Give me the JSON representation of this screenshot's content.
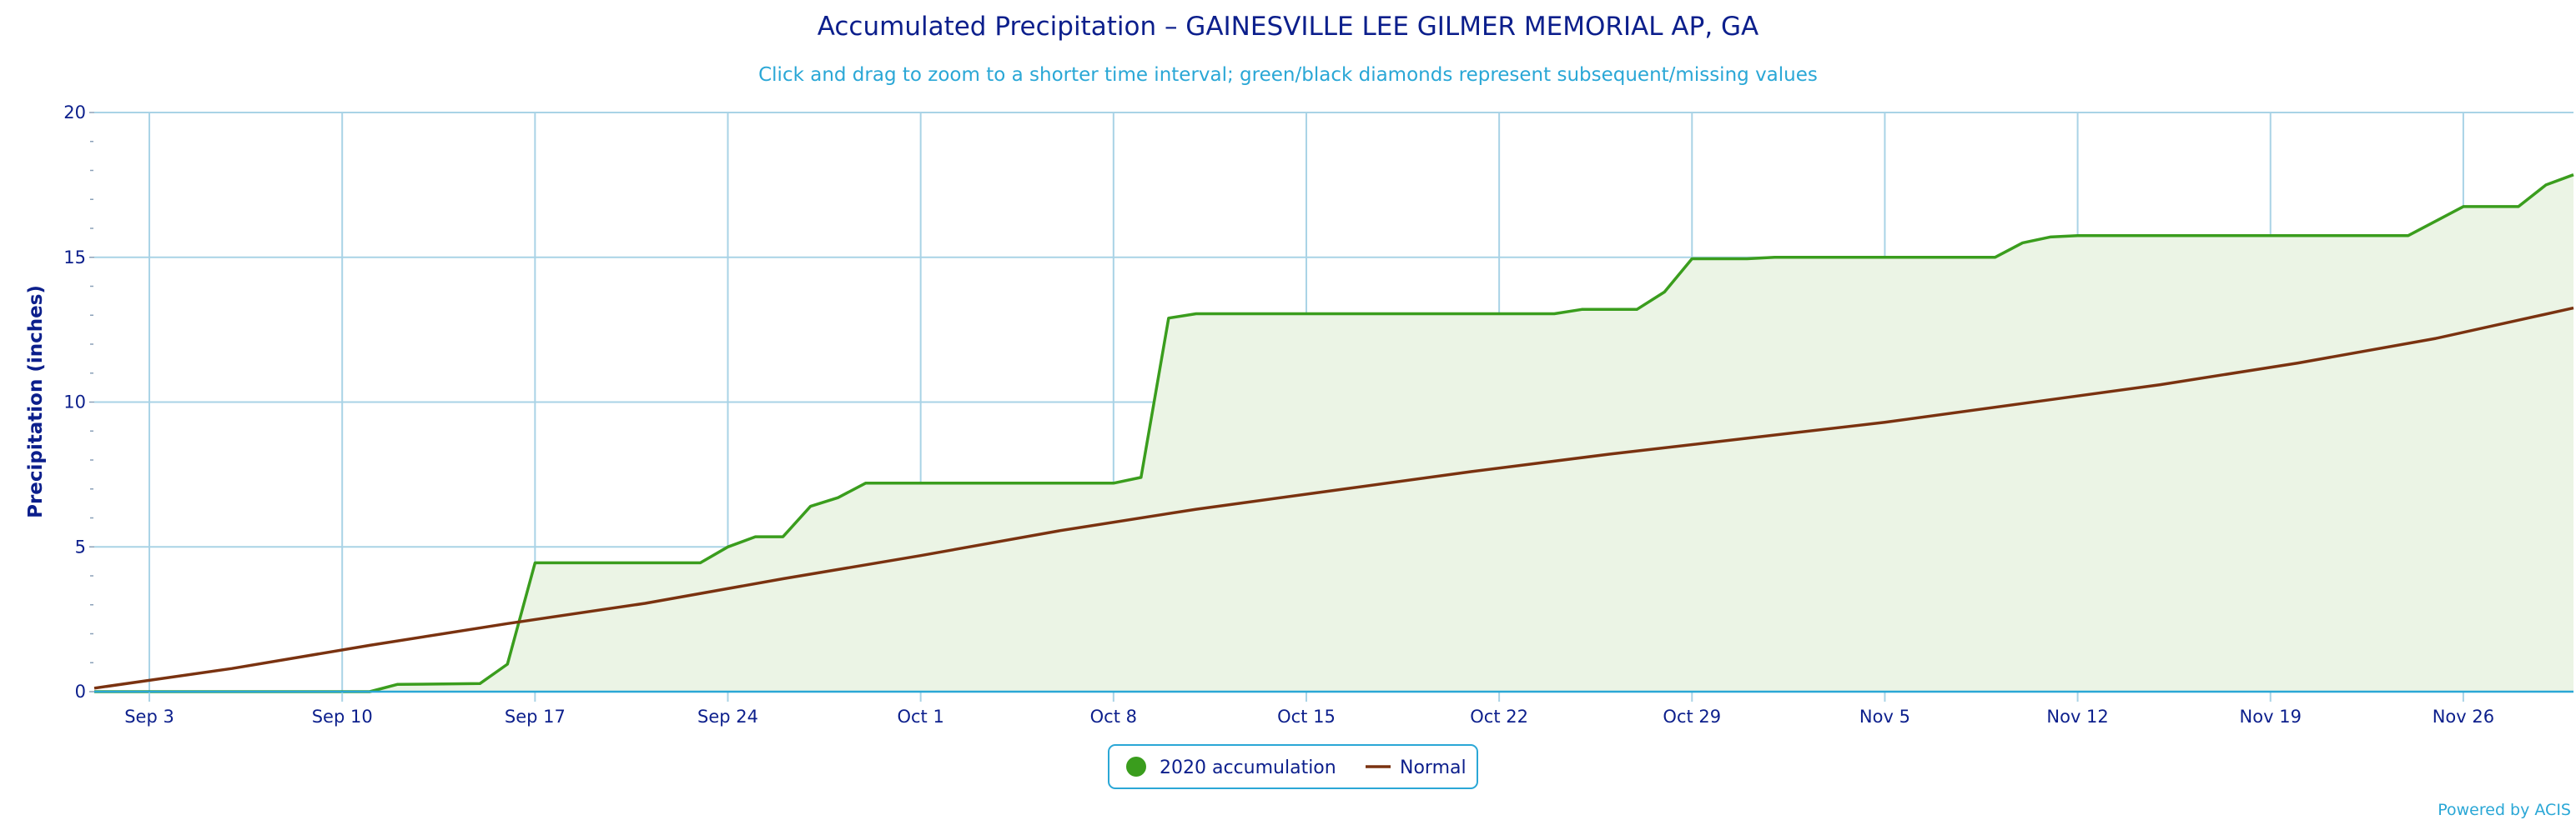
{
  "colors": {
    "accumulation": "#3a9d1d",
    "accumulation_fill": "#ebf4e5",
    "normal": "#7a3210",
    "grid": "#a9d3e6",
    "text": "#0c1f8c",
    "accent": "#2aa7d6"
  },
  "legend": {
    "accumulation_label": "2020 accumulation",
    "normal_label": "Normal"
  },
  "credit": "Powered by ACIS",
  "chart_data": {
    "type": "area",
    "title": "Accumulated Precipitation – GAINESVILLE LEE GILMER MEMORIAL AP, GA",
    "subtitle": "Click and drag to zoom to a shorter time interval; green/black diamonds represent subsequent/missing values",
    "ylabel": "Precipitation (inches)",
    "xlabel": "",
    "x_range": [
      "2020-09-01",
      "2020-11-30"
    ],
    "ylim": [
      0,
      20
    ],
    "y_ticks": [
      0,
      5,
      10,
      15,
      20
    ],
    "x_ticks": [
      {
        "date": "2020-09-03",
        "label": "Sep 3"
      },
      {
        "date": "2020-09-10",
        "label": "Sep 10"
      },
      {
        "date": "2020-09-17",
        "label": "Sep 17"
      },
      {
        "date": "2020-09-24",
        "label": "Sep 24"
      },
      {
        "date": "2020-10-01",
        "label": "Oct 1"
      },
      {
        "date": "2020-10-08",
        "label": "Oct 8"
      },
      {
        "date": "2020-10-15",
        "label": "Oct 15"
      },
      {
        "date": "2020-10-22",
        "label": "Oct 22"
      },
      {
        "date": "2020-10-29",
        "label": "Oct 29"
      },
      {
        "date": "2020-11-05",
        "label": "Nov 5"
      },
      {
        "date": "2020-11-12",
        "label": "Nov 12"
      },
      {
        "date": "2020-11-19",
        "label": "Nov 19"
      },
      {
        "date": "2020-11-26",
        "label": "Nov 26"
      }
    ],
    "grid": true,
    "legend_position": "bottom-center",
    "series": [
      {
        "name": "2020 accumulation",
        "style": "area",
        "points": [
          [
            "2020-09-01",
            0
          ],
          [
            "2020-09-11",
            0
          ],
          [
            "2020-09-12",
            0.25
          ],
          [
            "2020-09-14",
            0.27
          ],
          [
            "2020-09-15",
            0.28
          ],
          [
            "2020-09-16",
            0.95
          ],
          [
            "2020-09-17",
            4.45
          ],
          [
            "2020-09-23",
            4.45
          ],
          [
            "2020-09-24",
            5.0
          ],
          [
            "2020-09-25",
            5.35
          ],
          [
            "2020-09-26",
            5.35
          ],
          [
            "2020-09-27",
            6.4
          ],
          [
            "2020-09-28",
            6.7
          ],
          [
            "2020-09-29",
            7.2
          ],
          [
            "2020-10-08",
            7.2
          ],
          [
            "2020-10-09",
            7.4
          ],
          [
            "2020-10-10",
            12.9
          ],
          [
            "2020-10-11",
            13.05
          ],
          [
            "2020-10-24",
            13.05
          ],
          [
            "2020-10-25",
            13.2
          ],
          [
            "2020-10-27",
            13.2
          ],
          [
            "2020-10-28",
            13.8
          ],
          [
            "2020-10-29",
            14.95
          ],
          [
            "2020-10-31",
            14.95
          ],
          [
            "2020-11-01",
            15.0
          ],
          [
            "2020-11-09",
            15.0
          ],
          [
            "2020-11-10",
            15.5
          ],
          [
            "2020-11-11",
            15.7
          ],
          [
            "2020-11-12",
            15.75
          ],
          [
            "2020-11-24",
            15.75
          ],
          [
            "2020-11-25",
            16.25
          ],
          [
            "2020-11-26",
            16.75
          ],
          [
            "2020-11-28",
            16.75
          ],
          [
            "2020-11-29",
            17.5
          ],
          [
            "2020-11-30",
            17.85
          ]
        ]
      },
      {
        "name": "Normal",
        "style": "line",
        "points": [
          [
            "2020-09-01",
            0.12
          ],
          [
            "2020-09-06",
            0.8
          ],
          [
            "2020-09-11",
            1.6
          ],
          [
            "2020-09-16",
            2.35
          ],
          [
            "2020-09-21",
            3.05
          ],
          [
            "2020-09-26",
            3.9
          ],
          [
            "2020-10-01",
            4.7
          ],
          [
            "2020-10-06",
            5.55
          ],
          [
            "2020-10-11",
            6.3
          ],
          [
            "2020-10-16",
            6.95
          ],
          [
            "2020-10-21",
            7.6
          ],
          [
            "2020-10-26",
            8.2
          ],
          [
            "2020-10-31",
            8.75
          ],
          [
            "2020-11-05",
            9.3
          ],
          [
            "2020-11-10",
            9.95
          ],
          [
            "2020-11-15",
            10.6
          ],
          [
            "2020-11-20",
            11.35
          ],
          [
            "2020-11-25",
            12.2
          ],
          [
            "2020-11-30",
            13.25
          ]
        ]
      }
    ]
  }
}
